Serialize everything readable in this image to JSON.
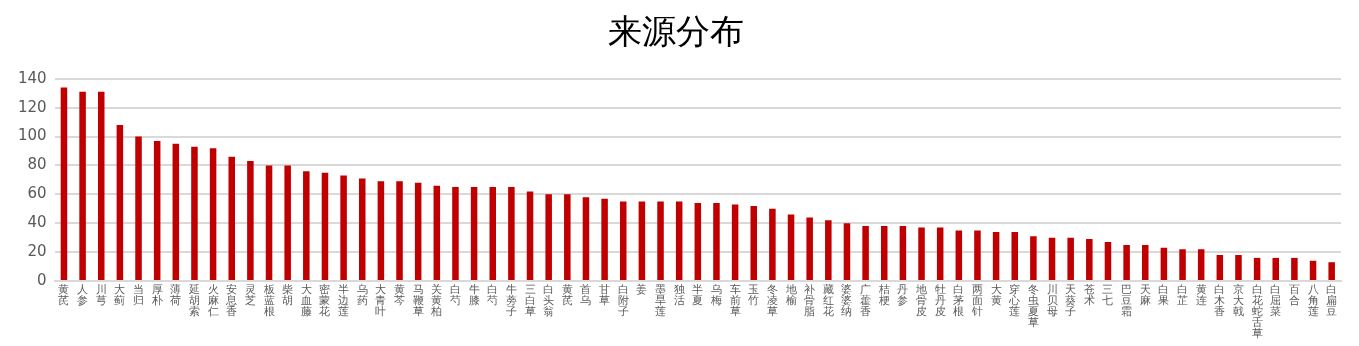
{
  "chart_data": {
    "type": "bar",
    "title": "来源分布",
    "categories": [
      "黄芪",
      "人参",
      "川芎",
      "大蓟",
      "当归",
      "厚朴",
      "薄荷",
      "延胡索",
      "火麻仁",
      "安息香",
      "灵芝",
      "板蓝根",
      "柴胡",
      "大血藤",
      "密蒙花",
      "半边莲",
      "乌药",
      "大青叶",
      "黄芩",
      "马鞭草",
      "关黄柏",
      "白芍",
      "牛膝",
      "白芍",
      "牛蒡子",
      "三白草",
      "白头翁",
      "黄芪",
      "首乌",
      "甘草",
      "白附子",
      "姜",
      "墨旱莲",
      "独活",
      "半夏",
      "乌梅",
      "车前草",
      "玉竹",
      "冬凌草",
      "地榆",
      "补骨脂",
      "藏红花",
      "婆婆纳",
      "广藿香",
      "桔梗",
      "丹参",
      "地骨皮",
      "牡丹皮",
      "白茅根",
      "两面针",
      "大黄",
      "穿心莲",
      "冬虫夏草",
      "川贝母",
      "天葵子",
      "苍术",
      "三七",
      "巴豆霜",
      "天麻",
      "白果",
      "白芷",
      "黄连",
      "白木香",
      "京大戟",
      "白花蛇舌草",
      "白屈菜",
      "百合",
      "八角莲",
      "白扁豆"
    ],
    "values": [
      134,
      131,
      131,
      108,
      100,
      97,
      95,
      93,
      92,
      86,
      83,
      80,
      80,
      76,
      75,
      73,
      71,
      69,
      69,
      68,
      66,
      65,
      65,
      65,
      65,
      62,
      60,
      60,
      58,
      57,
      55,
      55,
      55,
      55,
      54,
      54,
      53,
      52,
      50,
      46,
      44,
      42,
      40,
      38,
      38,
      38,
      37,
      37,
      35,
      35,
      34,
      34,
      31,
      30,
      30,
      29,
      27,
      25,
      25,
      23,
      22,
      22,
      18,
      18,
      16,
      16,
      16,
      14,
      13
    ],
    "color": "#c00000",
    "ylim": [
      0,
      140
    ],
    "yticks": [
      0,
      20,
      40,
      60,
      80,
      100,
      120,
      140
    ],
    "grid": "y"
  }
}
